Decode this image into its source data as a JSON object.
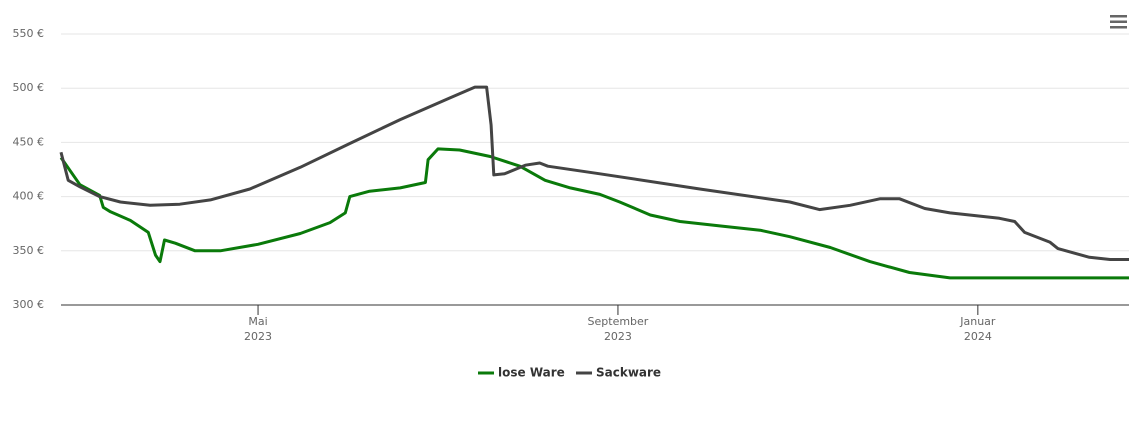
{
  "chart_data": {
    "type": "line",
    "xlim": [
      1.81,
      13.68
    ],
    "xticks": [
      {
        "value": 4,
        "label": "Mai",
        "year": "2023"
      },
      {
        "value": 8,
        "label": "September",
        "year": "2023"
      },
      {
        "value": 12,
        "label": "Januar",
        "year": "2024"
      }
    ],
    "ylim": [
      300,
      550
    ],
    "yticks": [
      {
        "value": 300,
        "label": "300 €"
      },
      {
        "value": 350,
        "label": "350 €"
      },
      {
        "value": 400,
        "label": "400 €"
      },
      {
        "value": 450,
        "label": "450 €"
      },
      {
        "value": 500,
        "label": "500 €"
      },
      {
        "value": 550,
        "label": "550 €"
      }
    ],
    "grid": true,
    "legend": "bottom",
    "series": [
      {
        "name": "lose Ware",
        "color": "#0a7a0a",
        "x": [
          1.81,
          2.02,
          2.24,
          2.28,
          2.36,
          2.58,
          2.78,
          2.86,
          2.91,
          2.96,
          3.08,
          3.3,
          3.58,
          4.0,
          4.47,
          4.8,
          4.97,
          5.02,
          5.24,
          5.58,
          5.86,
          5.89,
          6.0,
          6.24,
          6.58,
          6.91,
          7.19,
          7.47,
          7.8,
          8.02,
          8.36,
          8.69,
          9.13,
          9.58,
          9.91,
          10.36,
          10.8,
          11.24,
          11.69,
          13.68
        ],
        "values": [
          436,
          411,
          401,
          390,
          386,
          378,
          367,
          346,
          340,
          360,
          357,
          350,
          350,
          356,
          366,
          376,
          385,
          400,
          405,
          408,
          413,
          434,
          444,
          443,
          437,
          428,
          415,
          408,
          402,
          395,
          383,
          377,
          373,
          369,
          363,
          353,
          340,
          330,
          325,
          325
        ]
      },
      {
        "name": "Sackware",
        "color": "#444444",
        "x": [
          1.81,
          1.89,
          2.02,
          2.24,
          2.47,
          2.8,
          3.13,
          3.47,
          3.91,
          4.47,
          5.02,
          5.58,
          6.13,
          6.41,
          6.54,
          6.59,
          6.62,
          6.74,
          6.97,
          7.13,
          7.22,
          7.8,
          8.91,
          9.91,
          10.24,
          10.58,
          10.91,
          11.13,
          11.41,
          11.69,
          12.24,
          12.41,
          12.52,
          12.8,
          12.89,
          13.24,
          13.47,
          13.68
        ],
        "values": [
          441,
          415,
          409,
          400,
          395,
          392,
          393,
          397,
          407,
          427,
          449,
          471,
          491,
          501,
          501,
          466,
          420,
          421,
          429,
          431,
          428,
          421,
          407,
          395,
          388,
          392,
          398,
          398,
          389,
          385,
          380,
          377,
          367,
          358,
          352,
          344,
          342,
          342
        ]
      }
    ]
  }
}
